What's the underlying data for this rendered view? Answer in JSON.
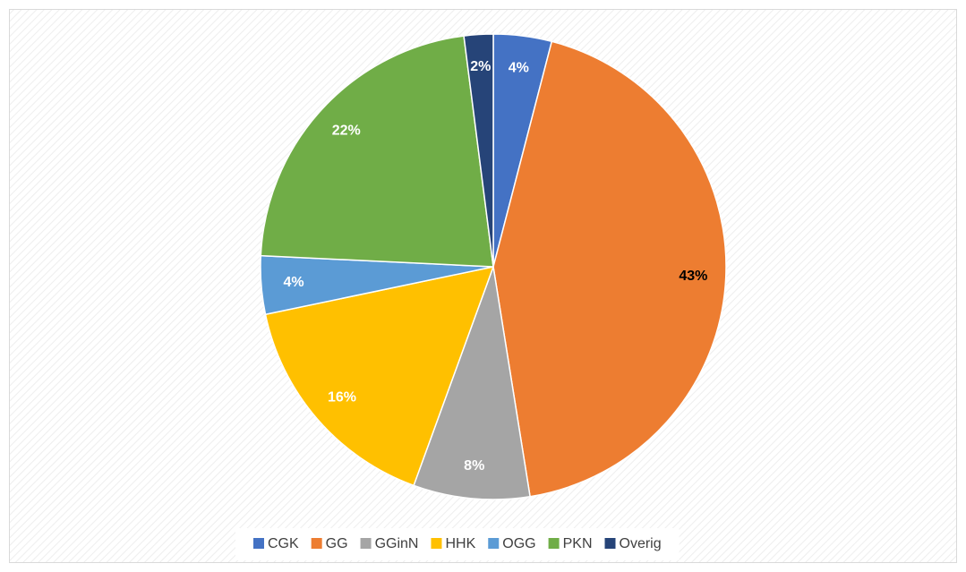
{
  "chart_data": {
    "type": "pie",
    "categories": [
      "CGK",
      "GG",
      "GGinN",
      "HHK",
      "OGG",
      "PKN",
      "Overig"
    ],
    "values": [
      4,
      43,
      8,
      16,
      4,
      22,
      2
    ],
    "value_labels": [
      "4%",
      "43%",
      "8%",
      "16%",
      "4%",
      "22%",
      "2%"
    ],
    "colors": [
      "#4472c4",
      "#ed7d31",
      "#a5a5a5",
      "#ffc000",
      "#5b9bd5",
      "#70ad47",
      "#264478"
    ],
    "label_colors": [
      "#ffffff",
      "#000000",
      "#ffffff",
      "#ffffff",
      "#ffffff",
      "#ffffff",
      "#ffffff"
    ],
    "legend": "bottom"
  }
}
